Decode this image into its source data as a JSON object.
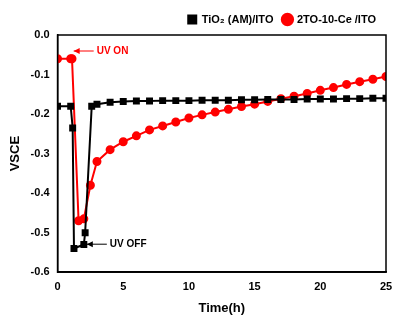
{
  "chart_data": {
    "type": "line",
    "x_label": "Time(h)",
    "y_label": "VSCE",
    "xlim": [
      0,
      25
    ],
    "xticks": [
      0,
      5,
      10,
      15,
      20,
      25
    ],
    "ylim": [
      -0.6,
      0
    ],
    "yticks": [
      -0.6,
      -0.5,
      -0.4,
      -0.3,
      -0.2,
      -0.1,
      {
        "value": 0,
        "label": "0.0"
      }
    ],
    "grid": false,
    "legend": "upper right",
    "series": [
      {
        "name": "TiO₂ (AM)/ITO",
        "color": "#000000",
        "marker": "square",
        "line_style": "solid",
        "x": [
          0,
          1,
          1.15,
          1.25,
          2,
          2.1,
          2.6,
          3,
          4,
          5,
          6,
          7,
          8,
          9,
          10,
          11,
          12,
          13,
          14,
          15,
          16,
          17,
          18,
          19,
          20,
          21,
          22,
          23,
          24,
          25
        ],
        "values": [
          -0.18,
          -0.18,
          -0.235,
          -0.54,
          -0.53,
          -0.5,
          -0.18,
          -0.175,
          -0.17,
          -0.168,
          -0.167,
          -0.167,
          -0.166,
          -0.166,
          -0.166,
          -0.165,
          -0.165,
          -0.165,
          -0.164,
          -0.164,
          -0.163,
          -0.163,
          -0.163,
          -0.162,
          -0.162,
          -0.162,
          -0.161,
          -0.161,
          -0.16,
          -0.16
        ]
      },
      {
        "name": "2TO-10-Ce /ITO",
        "color": "#ff0000",
        "marker": "circle",
        "line_style": "solid",
        "x": [
          0,
          1,
          1.1,
          1.6,
          2,
          2.5,
          3,
          4,
          5,
          6,
          7,
          8,
          9,
          10,
          11,
          12,
          13,
          14,
          15,
          16,
          17,
          18,
          19,
          20,
          21,
          22,
          23,
          24,
          25
        ],
        "values": [
          -0.06,
          -0.06,
          -0.06,
          -0.47,
          -0.465,
          -0.38,
          -0.32,
          -0.29,
          -0.27,
          -0.255,
          -0.24,
          -0.23,
          -0.22,
          -0.21,
          -0.202,
          -0.195,
          -0.188,
          -0.181,
          -0.175,
          -0.168,
          -0.161,
          -0.155,
          -0.148,
          -0.14,
          -0.133,
          -0.125,
          -0.118,
          -0.112,
          -0.105
        ]
      }
    ],
    "annotations": [
      {
        "text": "UV ON",
        "x": 1,
        "color": "#ff0000"
      },
      {
        "text": "UV OFF",
        "x": 2,
        "color": "#000000"
      }
    ]
  }
}
